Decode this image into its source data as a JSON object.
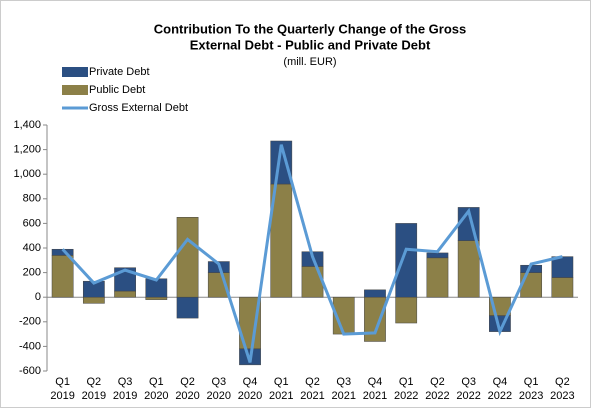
{
  "chart_data": {
    "type": "stacked-bar-line",
    "title": [
      "Contribution To the Quarterly Change of the Gross",
      "External Debt - Public and Private Debt"
    ],
    "subtitle": "(mill. EUR)",
    "categories": [
      [
        "Q1",
        "2019"
      ],
      [
        "Q2",
        "2019"
      ],
      [
        "Q3",
        "2019"
      ],
      [
        "Q1",
        "2020"
      ],
      [
        "Q2",
        "2020"
      ],
      [
        "Q3",
        "2020"
      ],
      [
        "Q4",
        "2020"
      ],
      [
        "Q1",
        "2021"
      ],
      [
        "Q2",
        "2021"
      ],
      [
        "Q3",
        "2021"
      ],
      [
        "Q4",
        "2021"
      ],
      [
        "Q1",
        "2022"
      ],
      [
        "Q2",
        "2022"
      ],
      [
        "Q3",
        "2022"
      ],
      [
        "Q4",
        "2022"
      ],
      [
        "Q1",
        "2023"
      ],
      [
        "Q2",
        "2023"
      ]
    ],
    "series": [
      {
        "name": "Private Debt",
        "color": "#2b4f82",
        "kind": "bar",
        "values": [
          50,
          130,
          190,
          150,
          -170,
          90,
          -130,
          350,
          120,
          0,
          60,
          600,
          40,
          270,
          -130,
          60,
          170
        ]
      },
      {
        "name": "Public Debt",
        "color": "#8c8048",
        "kind": "bar",
        "values": [
          340,
          -50,
          50,
          -20,
          650,
          200,
          -420,
          920,
          250,
          -300,
          -360,
          -210,
          320,
          460,
          -150,
          200,
          160
        ]
      },
      {
        "name": "Gross External Debt",
        "color": "#5b9bd5",
        "kind": "line",
        "values": [
          390,
          115,
          220,
          140,
          470,
          270,
          -530,
          1240,
          330,
          -300,
          -290,
          390,
          370,
          700,
          -280,
          270,
          330
        ]
      }
    ],
    "ylim": [
      -600,
      1400
    ],
    "yticks": [
      -600,
      -400,
      -200,
      0,
      200,
      400,
      600,
      800,
      {
        "value": 1000,
        "label": "1,000"
      },
      {
        "value": 1200,
        "label": "1,200"
      },
      {
        "value": 1400,
        "label": "1,400"
      }
    ],
    "legend": "top-left"
  }
}
